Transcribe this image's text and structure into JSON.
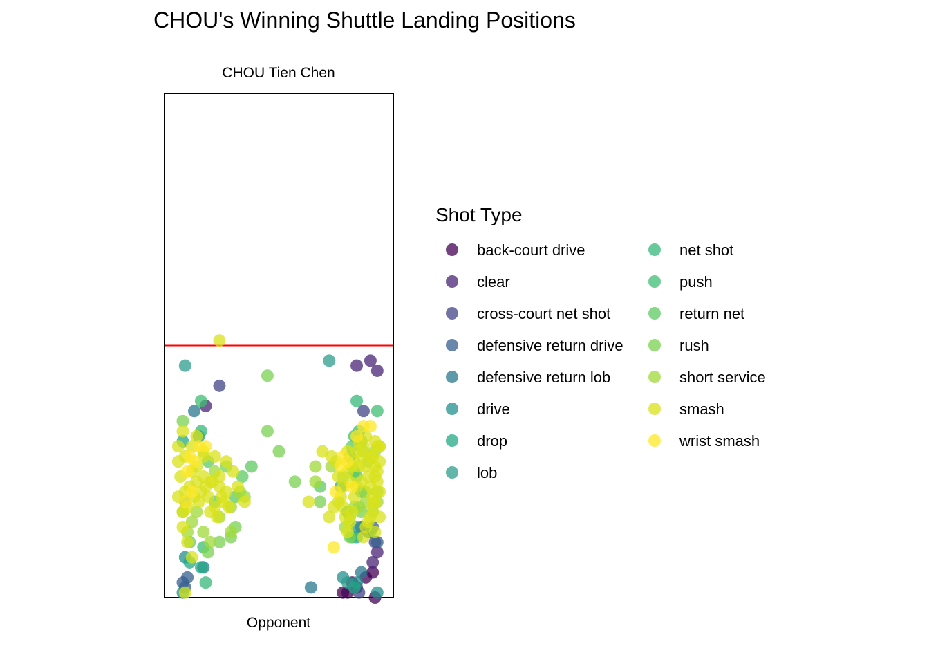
{
  "chart_data": {
    "type": "scatter",
    "title": "CHOU's Winning Shuttle Landing Positions",
    "top_label": "CHOU Tien Chen",
    "bottom_label": "Opponent",
    "legend_title": "Shot Type",
    "xlim": [
      0,
      100
    ],
    "ylim": [
      0,
      100
    ],
    "net_y": 50,
    "net_color": "#ff0000",
    "point_alpha": 0.75,
    "series": [
      {
        "name": "back-court drive",
        "color": "#440154",
        "points": [
          [
            78,
            1
          ],
          [
            80,
            1
          ],
          [
            82,
            3
          ],
          [
            92,
            0
          ],
          [
            91,
            5
          ],
          [
            88,
            4
          ]
        ]
      },
      {
        "name": "clear",
        "color": "#482475",
        "points": [
          [
            84,
            46
          ],
          [
            90,
            47
          ],
          [
            93,
            45
          ],
          [
            18,
            38
          ],
          [
            91,
            7
          ],
          [
            93,
            9
          ],
          [
            84,
            2
          ]
        ]
      },
      {
        "name": "cross-court net shot",
        "color": "#414487",
        "points": [
          [
            24,
            42
          ],
          [
            87,
            37
          ],
          [
            92,
            11
          ],
          [
            89,
            13
          ],
          [
            86,
            14
          ],
          [
            85,
            1
          ]
        ]
      },
      {
        "name": "defensive return drive",
        "color": "#355f8d",
        "points": [
          [
            8,
            3
          ],
          [
            10,
            4
          ],
          [
            91,
            14
          ],
          [
            93,
            11
          ],
          [
            9,
            2
          ]
        ]
      },
      {
        "name": "defensive return lob",
        "color": "#2a788e",
        "points": [
          [
            64,
            2
          ],
          [
            17,
            6
          ],
          [
            13,
            37
          ],
          [
            86,
            5
          ]
        ]
      },
      {
        "name": "drive",
        "color": "#21908d",
        "points": [
          [
            8,
            1
          ],
          [
            78,
            4
          ],
          [
            93,
            1
          ],
          [
            9,
            8
          ],
          [
            84,
            3
          ],
          [
            15,
            32
          ]
        ]
      },
      {
        "name": "drop",
        "color": "#22a884",
        "points": [
          [
            8,
            31
          ],
          [
            11,
            7
          ],
          [
            16,
            6
          ],
          [
            84,
            12
          ],
          [
            83,
            2
          ],
          [
            81,
            28
          ],
          [
            77,
            22
          ],
          [
            90,
            13
          ]
        ]
      },
      {
        "name": "lob",
        "color": "#2d9c8c",
        "points": [
          [
            9,
            46
          ],
          [
            72,
            47
          ],
          [
            80,
            3
          ],
          [
            84,
            14
          ]
        ]
      },
      {
        "name": "net shot",
        "color": "#35b779",
        "points": [
          [
            84,
            39
          ],
          [
            18,
            3
          ],
          [
            9,
            19
          ],
          [
            16,
            33
          ],
          [
            82,
            12
          ],
          [
            80,
            17
          ],
          [
            86,
            21
          ]
        ]
      },
      {
        "name": "push",
        "color": "#3fbc73",
        "points": [
          [
            83,
            32
          ],
          [
            16,
            39
          ],
          [
            93,
            37
          ],
          [
            17,
            10
          ],
          [
            83,
            25
          ],
          [
            85,
            33
          ]
        ]
      },
      {
        "name": "return net",
        "color": "#5ec962",
        "points": [
          [
            19,
            27
          ],
          [
            22,
            19
          ],
          [
            31,
            20
          ],
          [
            34,
            24
          ],
          [
            38,
            26
          ],
          [
            82,
            30
          ],
          [
            11,
            11
          ],
          [
            84,
            24
          ],
          [
            68,
            22
          ],
          [
            86,
            31
          ]
        ]
      },
      {
        "name": "rush",
        "color": "#7ad151",
        "points": [
          [
            45,
            44
          ],
          [
            45,
            33
          ],
          [
            50,
            29
          ],
          [
            27,
            26
          ],
          [
            8,
            35
          ],
          [
            29,
            12
          ],
          [
            31,
            14
          ],
          [
            19,
            9
          ],
          [
            24,
            11
          ],
          [
            57,
            23
          ],
          [
            68,
            19
          ],
          [
            81,
            12
          ],
          [
            86,
            17
          ]
        ]
      },
      {
        "name": "short service",
        "color": "#a0da39",
        "points": [
          [
            10,
            13
          ],
          [
            12,
            15
          ],
          [
            17,
            13
          ],
          [
            20,
            11
          ],
          [
            14,
            17
          ],
          [
            24,
            16
          ],
          [
            29,
            18
          ],
          [
            33,
            21
          ],
          [
            35,
            20
          ],
          [
            81,
            16
          ],
          [
            83,
            18
          ],
          [
            79,
            14
          ],
          [
            85,
            18
          ],
          [
            88,
            19
          ],
          [
            91,
            17
          ],
          [
            93,
            19
          ],
          [
            88,
            21
          ],
          [
            66,
            23
          ],
          [
            66,
            26
          ],
          [
            73,
            26
          ],
          [
            78,
            24
          ],
          [
            87,
            29
          ],
          [
            89,
            27
          ],
          [
            92,
            29
          ],
          [
            93,
            21
          ],
          [
            8,
            17
          ],
          [
            22,
            25
          ],
          [
            29,
            13
          ]
        ]
      },
      {
        "name": "smash",
        "color": "#d8e219",
        "points": [
          [
            24,
            51
          ],
          [
            6,
            20
          ],
          [
            7,
            24
          ],
          [
            8,
            17
          ],
          [
            9,
            21
          ],
          [
            10,
            18
          ],
          [
            11,
            22
          ],
          [
            12,
            25
          ],
          [
            13,
            20
          ],
          [
            14,
            23
          ],
          [
            15,
            19
          ],
          [
            16,
            21
          ],
          [
            17,
            24
          ],
          [
            18,
            22
          ],
          [
            19,
            20
          ],
          [
            20,
            17
          ],
          [
            21,
            23
          ],
          [
            22,
            18
          ],
          [
            23,
            16
          ],
          [
            24,
            22
          ],
          [
            25,
            20
          ],
          [
            26,
            19
          ],
          [
            27,
            21
          ],
          [
            28,
            18
          ],
          [
            6,
            27
          ],
          [
            9,
            28
          ],
          [
            12,
            30
          ],
          [
            14,
            26
          ],
          [
            17,
            28
          ],
          [
            20,
            23
          ],
          [
            22,
            28
          ],
          [
            24,
            24
          ],
          [
            27,
            27
          ],
          [
            30,
            25
          ],
          [
            32,
            22
          ],
          [
            35,
            19
          ],
          [
            8,
            14
          ],
          [
            10,
            11
          ],
          [
            12,
            8
          ],
          [
            9,
            1
          ],
          [
            69,
            29
          ],
          [
            63,
            19
          ],
          [
            73,
            28
          ],
          [
            75,
            27
          ],
          [
            76,
            24
          ],
          [
            77,
            20
          ],
          [
            78,
            18
          ],
          [
            79,
            16
          ],
          [
            80,
            13
          ],
          [
            81,
            15
          ],
          [
            82,
            17
          ],
          [
            83,
            20
          ],
          [
            84,
            22
          ],
          [
            85,
            26
          ],
          [
            86,
            28
          ],
          [
            87,
            30
          ],
          [
            88,
            32
          ],
          [
            89,
            24
          ],
          [
            90,
            22
          ],
          [
            91,
            20
          ],
          [
            92,
            26
          ],
          [
            93,
            23
          ],
          [
            94,
            21
          ],
          [
            93,
            25
          ],
          [
            92,
            19
          ],
          [
            91,
            18
          ],
          [
            90,
            16
          ],
          [
            89,
            15
          ],
          [
            88,
            14
          ],
          [
            87,
            12
          ],
          [
            94,
            16
          ],
          [
            92,
            13
          ],
          [
            72,
            16
          ],
          [
            74,
            18
          ],
          [
            76,
            19
          ],
          [
            78,
            22
          ],
          [
            80,
            25
          ],
          [
            82,
            26
          ],
          [
            84,
            29
          ],
          [
            85,
            31
          ],
          [
            83,
            27
          ],
          [
            81,
            23
          ],
          [
            86,
            23
          ],
          [
            88,
            26
          ],
          [
            90,
            28
          ],
          [
            92,
            31
          ],
          [
            94,
            27
          ],
          [
            91,
            28
          ],
          [
            94,
            30
          ],
          [
            93,
            30
          ],
          [
            6,
            30
          ],
          [
            8,
            33
          ],
          [
            14,
            32
          ],
          [
            17,
            29
          ],
          [
            80,
            29
          ],
          [
            92,
            24
          ],
          [
            94,
            30
          ]
        ]
      },
      {
        "name": "wrist smash",
        "color": "#fde725",
        "points": [
          [
            10,
            25
          ],
          [
            11,
            28
          ],
          [
            13,
            27
          ],
          [
            15,
            30
          ],
          [
            18,
            30
          ],
          [
            9,
            19
          ],
          [
            12,
            21
          ],
          [
            84,
            32
          ],
          [
            87,
            34
          ],
          [
            90,
            34
          ],
          [
            75,
            21
          ],
          [
            77,
            26
          ],
          [
            78,
            28
          ],
          [
            80,
            27
          ],
          [
            82,
            22
          ],
          [
            74,
            10
          ]
        ]
      }
    ]
  }
}
